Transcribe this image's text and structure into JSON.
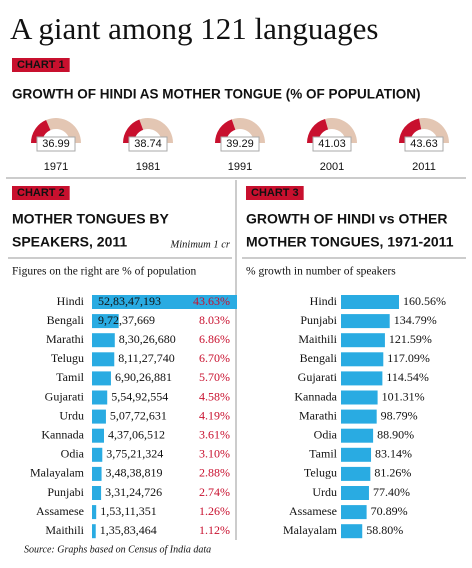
{
  "title": "A giant among 121 languages",
  "source": "Source: Graphs based on Census of India data",
  "chart_data": [
    {
      "type": "gauge",
      "label": "CHART 1",
      "title": "GROWTH OF HINDI AS MOTHER TONGUE (% OF POPULATION)",
      "categories": [
        "1971",
        "1981",
        "1991",
        "2001",
        "2011"
      ],
      "values": [
        36.99,
        38.74,
        39.29,
        41.03,
        43.63
      ],
      "ylim": [
        0,
        100
      ],
      "color": "#c8102e",
      "track_color": "#e3c6b3"
    },
    {
      "type": "hbar",
      "label": "CHART 2",
      "title": [
        "MOTHER TONGUES BY",
        "SPEAKERS, 2011"
      ],
      "note": "Minimum 1 cr",
      "subtitle": "Figures on the right are % of population",
      "categories": [
        "Hindi",
        "Bengali",
        "Marathi",
        "Telugu",
        "Tamil",
        "Gujarati",
        "Urdu",
        "Kannada",
        "Odia",
        "Malayalam",
        "Punjabi",
        "Assamese",
        "Maithili"
      ],
      "values": [
        528347193,
        97237669,
        83026680,
        81127740,
        69026881,
        55492554,
        50772631,
        43706512,
        37521324,
        34838819,
        33124726,
        15311351,
        13583464
      ],
      "value_labels": [
        "52,83,47,193",
        "9,72,37,669",
        "8,30,26,680",
        "8,11,27,740",
        "6,90,26,881",
        "5,54,92,554",
        "5,07,72,631",
        "4,37,06,512",
        "3,75,21,324",
        "3,48,38,819",
        "3,31,24,726",
        "1,53,11,351",
        "1,35,83,464"
      ],
      "shares": [
        43.63,
        8.03,
        6.86,
        6.7,
        5.7,
        4.58,
        4.19,
        3.61,
        3.1,
        2.88,
        2.74,
        1.26,
        1.12
      ],
      "share_labels": [
        "43.63%",
        "8.03%",
        "6.86%",
        "6.70%",
        "5.70%",
        "4.58%",
        "4.19%",
        "3.61%",
        "3.10%",
        "2.88%",
        "2.74%",
        "1.26%",
        "1.12%"
      ],
      "color": "#29abe2",
      "share_color": "#c8102e"
    },
    {
      "type": "hbar",
      "label": "CHART 3",
      "title": [
        "GROWTH OF HINDI vs OTHER",
        "MOTHER TONGUES, 1971-2011"
      ],
      "subtitle": "% growth in number of speakers",
      "categories": [
        "Hindi",
        "Punjabi",
        "Maithili",
        "Bengali",
        "Gujarati",
        "Kannada",
        "Marathi",
        "Odia",
        "Tamil",
        "Telugu",
        "Urdu",
        "Assamese",
        "Malayalam"
      ],
      "values": [
        160.56,
        134.79,
        121.59,
        117.09,
        114.54,
        101.31,
        98.79,
        88.9,
        83.14,
        81.26,
        77.4,
        70.89,
        58.8
      ],
      "value_labels": [
        "160.56%",
        "134.79%",
        "121.59%",
        "117.09%",
        "114.54%",
        "101.31%",
        "98.79%",
        "88.90%",
        "83.14%",
        "81.26%",
        "77.40%",
        "70.89%",
        "58.80%"
      ],
      "color": "#29abe2"
    }
  ]
}
